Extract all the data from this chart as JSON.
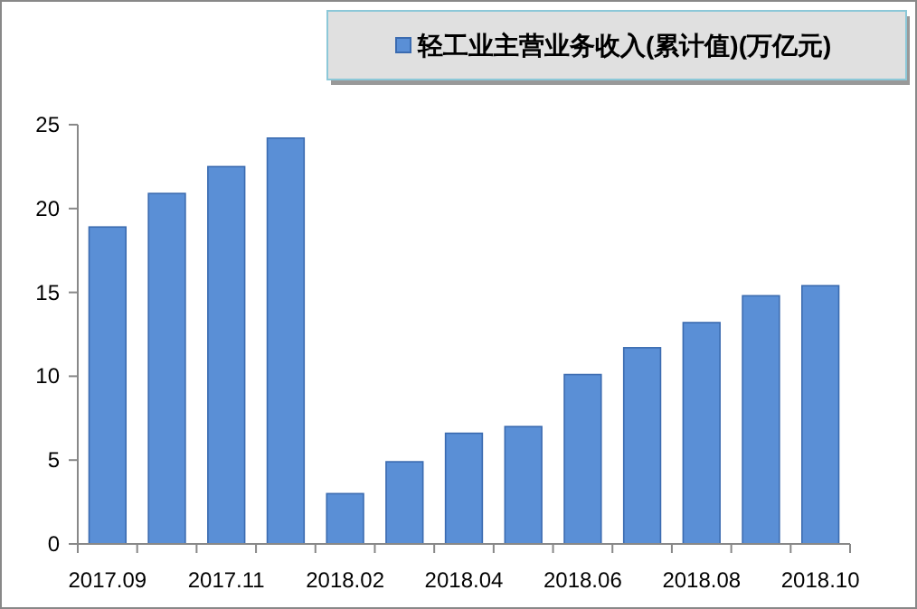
{
  "chart_data": {
    "type": "bar",
    "categories": [
      "2017.09",
      null,
      "2017.11",
      null,
      "2018.02",
      null,
      "2018.04",
      null,
      "2018.06",
      null,
      "2018.08",
      null,
      "2018.10"
    ],
    "series": [
      {
        "name": "轻工业主营业务收入(累计值)(万亿元)",
        "color": "#5a8fd6",
        "values": [
          18.9,
          20.9,
          22.5,
          24.2,
          3.0,
          4.9,
          6.6,
          7.0,
          10.1,
          11.7,
          13.2,
          14.8,
          15.4
        ]
      }
    ],
    "ylim": [
      0,
      25
    ],
    "yticks": [
      0,
      5,
      10,
      15,
      20,
      25
    ],
    "legend": "top right"
  }
}
